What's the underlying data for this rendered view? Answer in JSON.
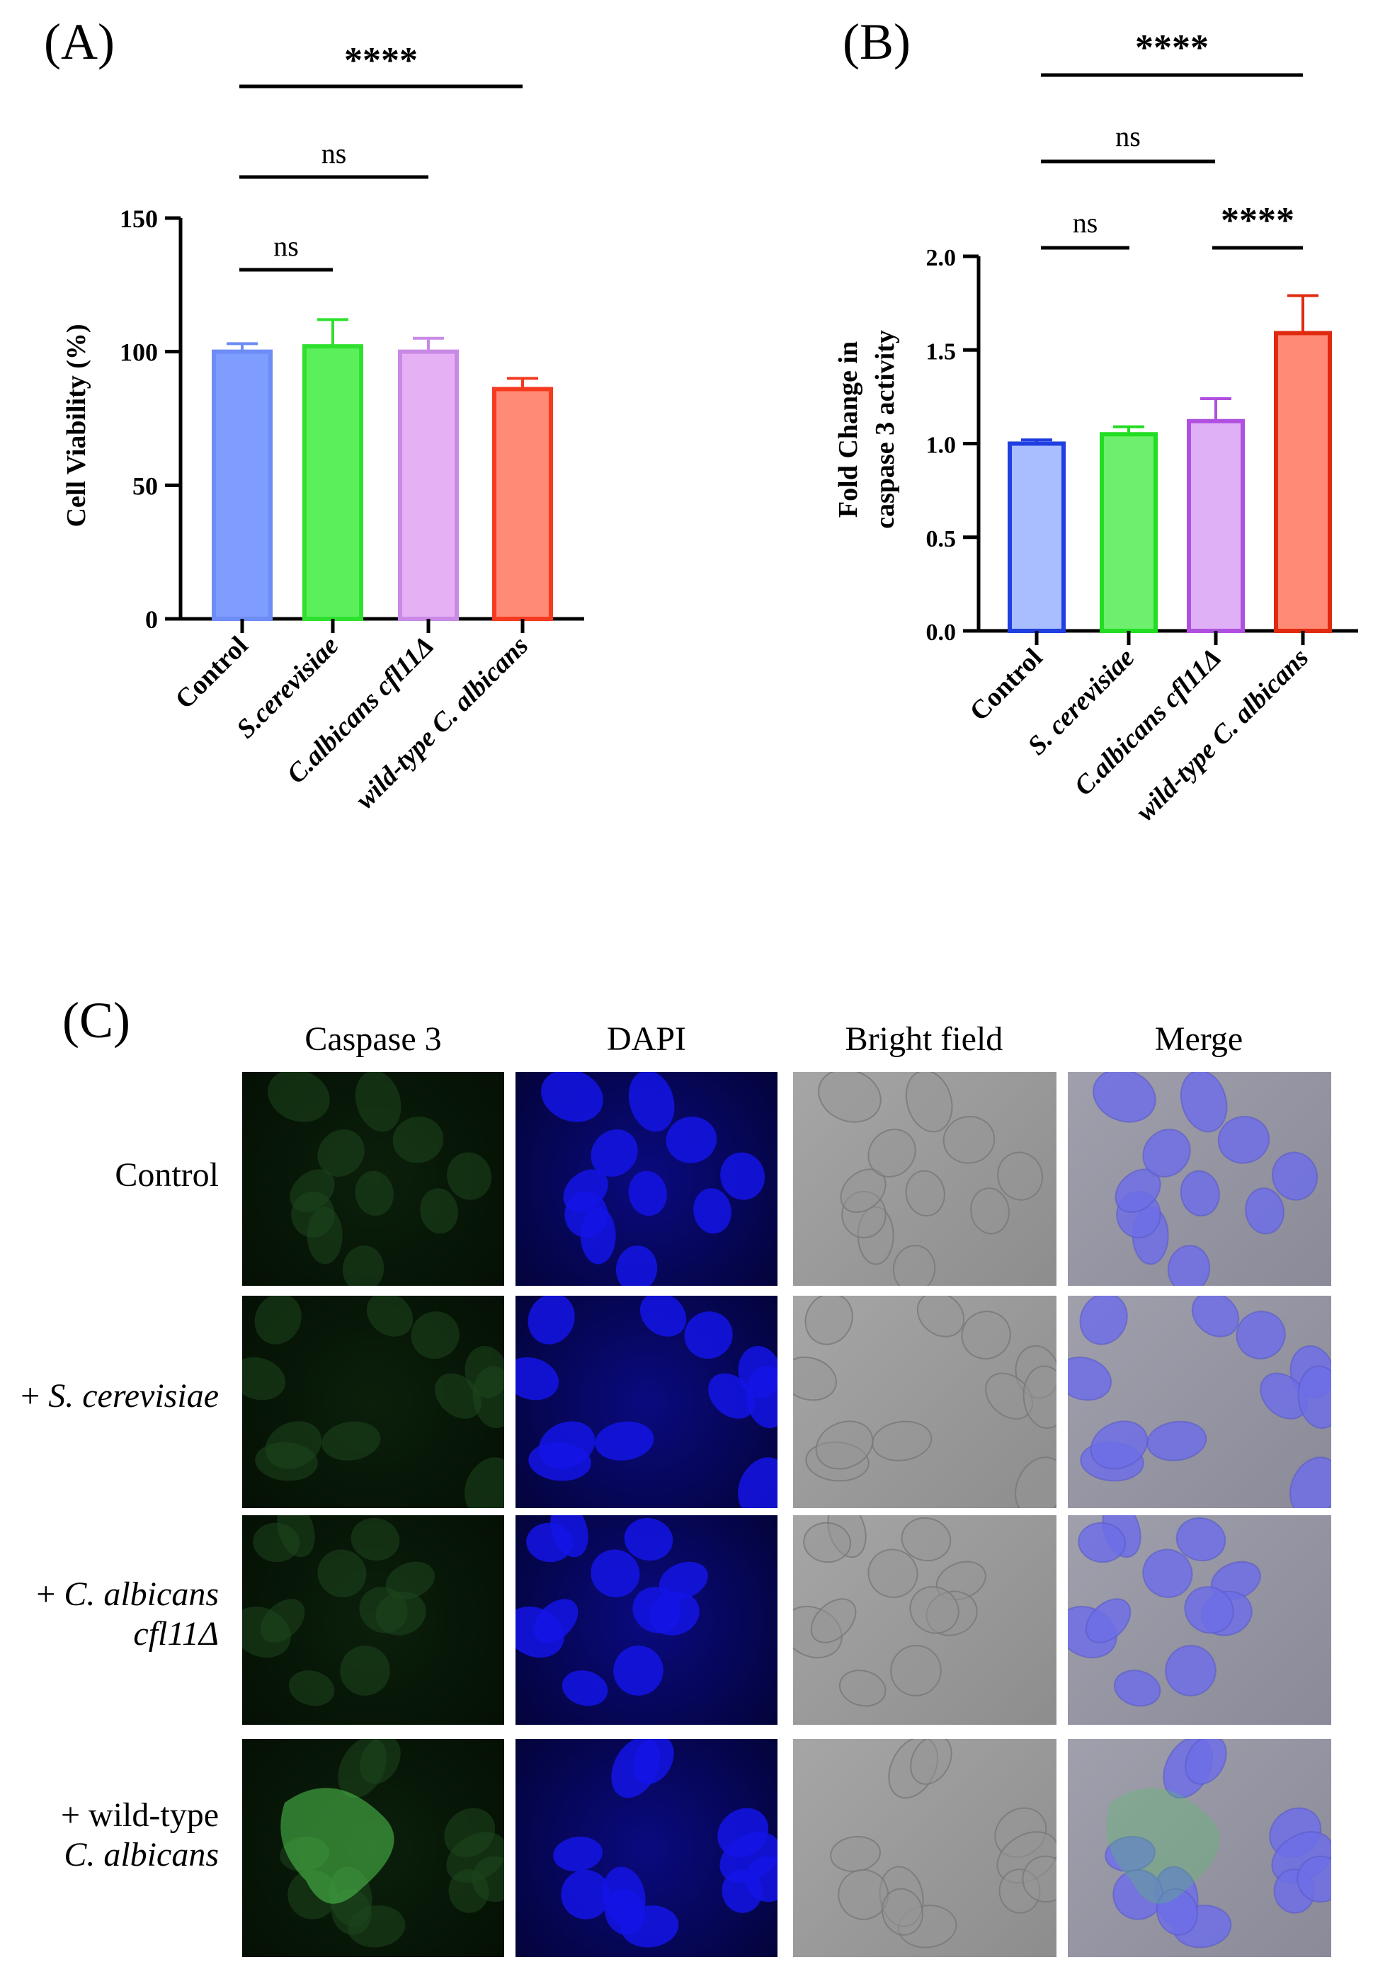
{
  "panels": {
    "a": "(A)",
    "b": "(B)",
    "c": "(C)"
  },
  "colors": {
    "control": "#7f9cff",
    "s_cerevisiae": "#5cef5c",
    "c_albicans_cfl11": "#e6b0f4",
    "wild_type": "#ff8a75",
    "control_b": "#a9beff",
    "control_b_edge": "#1f3fe0",
    "s_cer_b": "#6ef06e",
    "c_alb_b": "#e0b0f7",
    "c_alb_b_edge": "#b050e0",
    "wt_b": "#ff8a75",
    "wt_b_edge": "#e02a10"
  },
  "chart_data": [
    {
      "type": "bar",
      "ylabel": "Cell Viability (%)",
      "categories": [
        "Control",
        "S.cerevisiae",
        "C.albicans cfl11Δ",
        "wild-type C. albicans"
      ],
      "values": [
        100,
        102,
        100,
        86
      ],
      "errors": [
        3,
        10,
        5,
        4
      ],
      "ylim": [
        0,
        150
      ],
      "yticks": [
        "0",
        "50",
        "100",
        "150"
      ],
      "significance": [
        {
          "from": 0,
          "to": 3,
          "label": "****"
        },
        {
          "from": 0,
          "to": 2,
          "label": "ns"
        },
        {
          "from": 0,
          "to": 1,
          "label": "ns"
        }
      ]
    },
    {
      "type": "bar",
      "ylabel": [
        "Fold Change in",
        "caspase 3 activity"
      ],
      "categories": [
        "Control",
        "S. cerevisiae",
        "C.albicans cfl11Δ",
        "wild-type C. albicans"
      ],
      "values": [
        1.0,
        1.05,
        1.12,
        1.59
      ],
      "errors": [
        0.02,
        0.04,
        0.12,
        0.2
      ],
      "ylim": [
        0,
        2.0
      ],
      "yticks": [
        "0.0",
        "0.5",
        "1.0",
        "1.5",
        "2.0"
      ],
      "significance": [
        {
          "from": 0,
          "to": 3,
          "label": "****"
        },
        {
          "from": 0,
          "to": 2,
          "label": "ns"
        },
        {
          "from": 0,
          "to": 1,
          "label": "ns"
        },
        {
          "from": 2,
          "to": 3,
          "label": "****"
        }
      ]
    }
  ],
  "microscopy": {
    "columns": [
      "Caspase 3",
      "DAPI",
      "Bright field",
      "Merge"
    ],
    "rows": [
      {
        "line1": "Control",
        "line2": ""
      },
      {
        "prefix": "+ ",
        "line1": "S. cerevisiae",
        "line2": ""
      },
      {
        "prefix": "+ ",
        "line1": "C. albicans",
        "line2": "cfl11Δ"
      },
      {
        "prefix": "+ ",
        "line1": "wild-type",
        "line2": "C. albicans"
      }
    ]
  }
}
